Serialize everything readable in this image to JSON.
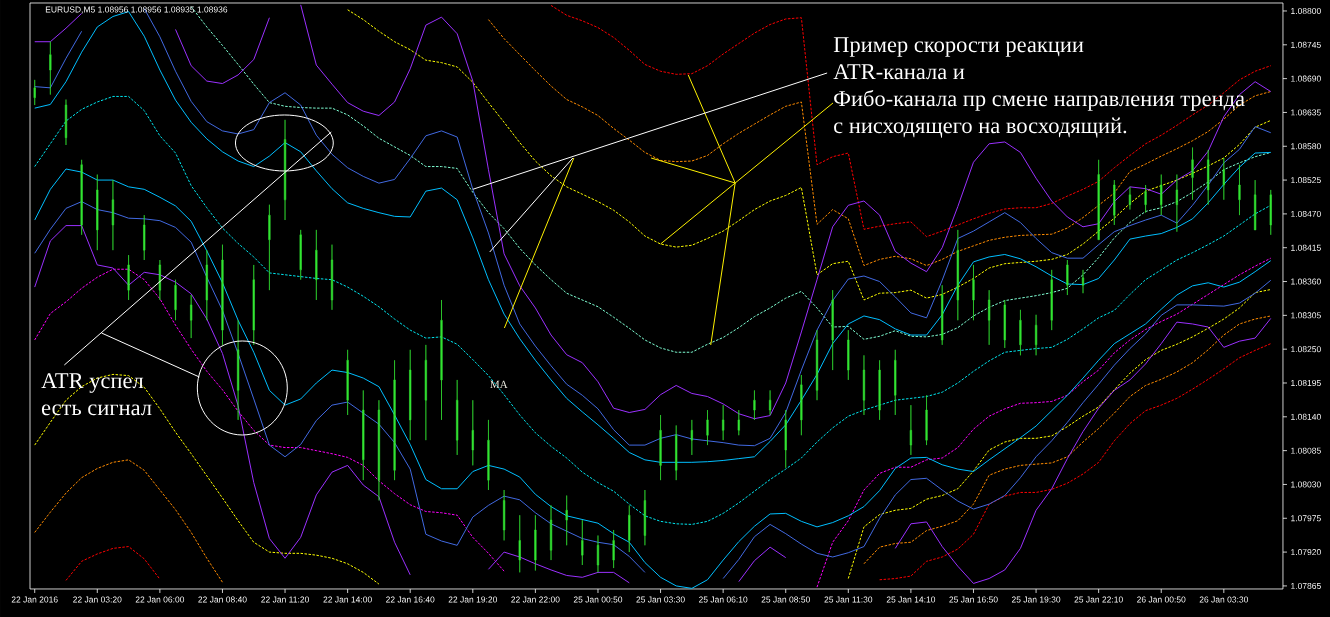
{
  "chart_data": {
    "type": "candlestick",
    "title": "EURUSD,M5 1.08956 1.08956 1.08935 1.08936",
    "annotations": [
      {
        "text": "Пример скорости реакции ATR-канала и",
        "x": "22 Jan 19:20",
        "y": 1.0851
      },
      {
        "text": "Фибо-канала пр смене направления тренда с нисходящего на восходящий.",
        "x": "25 Jan 03:30",
        "y": 1.08421
      },
      "ATR успел",
      "есть сигнал",
      "MA"
    ],
    "ylim": [
      1.0786,
      1.08813
    ],
    "yticks": [
      {
        "value": 1.07865,
        "label": "1.07865"
      },
      {
        "value": 1.0792,
        "label": "1.07920"
      },
      {
        "value": 1.07975,
        "label": "1.07975"
      },
      {
        "value": 1.0803,
        "label": "1.08030"
      },
      {
        "value": 1.08085,
        "label": "1.08085"
      },
      {
        "value": 1.0814,
        "label": "1.08140"
      },
      {
        "value": 1.08195,
        "label": "1.08195"
      },
      {
        "value": 1.0825,
        "label": "1.08250"
      },
      {
        "value": 1.08305,
        "label": "1.08305"
      },
      {
        "value": 1.0836,
        "label": "1.08360"
      },
      {
        "value": 1.08415,
        "label": "1.08415"
      },
      {
        "value": 1.0847,
        "label": "1.08470"
      },
      {
        "value": 1.08525,
        "label": "1.08525"
      },
      {
        "value": 1.0858,
        "label": "1.08580"
      },
      {
        "value": 1.08635,
        "label": "1.08635"
      },
      {
        "value": 1.0869,
        "label": "1.08690"
      },
      {
        "value": 1.08745,
        "label": "1.08745"
      },
      {
        "value": 1.088,
        "label": "1.08800"
      }
    ],
    "categories": [
      "22 Jan 2016",
      null,
      null,
      null,
      "22 Jan 03:20",
      null,
      null,
      null,
      "22 Jan 06:00",
      null,
      null,
      null,
      "22 Jan 08:40",
      null,
      null,
      null,
      "22 Jan 11:20",
      null,
      null,
      null,
      "22 Jan 14:00",
      null,
      null,
      null,
      "22 Jan 16:40",
      null,
      null,
      null,
      "22 Jan 19:20",
      null,
      null,
      null,
      "22 Jan 22:00",
      null,
      null,
      null,
      "25 Jan 00:50",
      null,
      null,
      null,
      "25 Jan 03:30",
      null,
      null,
      null,
      "25 Jan 06:10",
      null,
      null,
      null,
      "25 Jan 08:50",
      null,
      null,
      null,
      "25 Jan 11:30",
      null,
      null,
      null,
      "25 Jan 14:10",
      null,
      null,
      null,
      "25 Jan 16:50",
      null,
      null,
      null,
      "25 Jan 19:30",
      null,
      null,
      null,
      "25 Jan 22:10",
      null,
      null,
      null,
      "26 Jan 00:50",
      null,
      null,
      null,
      "26 Jan 03:30",
      null,
      null,
      null
    ],
    "color": "#33e633",
    "ohlc": [
      [
        1.08675,
        1.08688,
        1.08647,
        1.08659
      ],
      [
        1.08704,
        1.0875,
        1.08664,
        1.08729
      ],
      [
        1.08647,
        1.08656,
        1.08582,
        1.08594
      ],
      [
        1.0855,
        1.08558,
        1.08436,
        1.08452
      ],
      [
        1.08444,
        1.08534,
        1.08411,
        1.08509
      ],
      [
        1.08452,
        1.08525,
        1.08411,
        1.08493
      ],
      [
        1.08346,
        1.08403,
        1.0833,
        1.08387
      ],
      [
        1.08411,
        1.08468,
        1.08395,
        1.08452
      ],
      [
        1.08387,
        1.08395,
        1.0833,
        1.08346
      ],
      [
        1.08354,
        1.08363,
        1.08297,
        1.08314
      ],
      [
        1.08297,
        1.08338,
        1.08268,
        1.08322
      ],
      [
        1.0833,
        1.08411,
        1.08297,
        1.08387
      ],
      [
        1.08395,
        1.0842,
        1.08257,
        1.08281
      ],
      [
        1.08183,
        1.08297,
        1.08135,
        1.08249
      ],
      [
        1.08281,
        1.08387,
        1.08257,
        1.08363
      ],
      [
        1.08428,
        1.08485,
        1.08346,
        1.08468
      ],
      [
        1.08493,
        1.08623,
        1.0846,
        1.08591
      ],
      [
        1.08436,
        1.08444,
        1.08363,
        1.08379
      ],
      [
        1.08411,
        1.08444,
        1.0833,
        1.08363
      ],
      [
        1.08395,
        1.0842,
        1.08314,
        1.0833
      ],
      [
        1.08232,
        1.08249,
        1.08143,
        1.08167
      ],
      [
        1.0807,
        1.08183,
        1.08037,
        1.08151
      ],
      [
        1.08151,
        1.08167,
        1.08004,
        1.08037
      ],
      [
        1.08053,
        1.08232,
        1.08037,
        1.082
      ],
      [
        1.08216,
        1.08249,
        1.08102,
        1.08135
      ],
      [
        1.08167,
        1.08257,
        1.08102,
        1.08232
      ],
      [
        1.082,
        1.0833,
        1.08135,
        1.08297
      ],
      [
        1.08102,
        1.082,
        1.08078,
        1.08167
      ],
      [
        1.08118,
        1.08167,
        1.08061,
        1.08086
      ],
      [
        1.08102,
        1.08135,
        1.08021,
        1.08037
      ],
      [
        1.08004,
        1.08021,
        1.07939,
        1.07956
      ],
      [
        1.07939,
        1.0798,
        1.07887,
        1.07907
      ],
      [
        1.07907,
        1.0798,
        1.0789,
        1.07956
      ],
      [
        1.07923,
        1.07996,
        1.07907,
        1.07972
      ],
      [
        1.07972,
        1.08012,
        1.07931,
        1.07988
      ],
      [
        1.07939,
        1.07972,
        1.07899,
        1.07915
      ],
      [
        1.07931,
        1.07947,
        1.07887,
        1.07899
      ],
      [
        1.07907,
        1.07956,
        1.07894,
        1.07939
      ],
      [
        1.0798,
        1.07996,
        1.0792,
        1.07939
      ],
      [
        1.07947,
        1.08021,
        1.07931,
        1.08004
      ],
      [
        1.08118,
        1.08143,
        1.08037,
        1.08061
      ],
      [
        1.08053,
        1.08126,
        1.08037,
        1.0811
      ],
      [
        1.08102,
        1.08135,
        1.08078,
        1.08118
      ],
      [
        1.0811,
        1.08151,
        1.08094,
        1.08135
      ],
      [
        1.08135,
        1.08159,
        1.08102,
        1.08118
      ],
      [
        1.08135,
        1.08151,
        1.0811,
        1.08118
      ],
      [
        1.08151,
        1.08183,
        1.08135,
        1.08167
      ],
      [
        1.08167,
        1.08183,
        1.08143,
        1.08151
      ],
      [
        1.08086,
        1.08151,
        1.08057,
        1.08135
      ],
      [
        1.08135,
        1.08208,
        1.0811,
        1.08192
      ],
      [
        1.08183,
        1.08281,
        1.08167,
        1.08265
      ],
      [
        1.08265,
        1.08346,
        1.08216,
        1.0833
      ],
      [
        1.08265,
        1.08281,
        1.082,
        1.08216
      ],
      [
        1.08167,
        1.0824,
        1.08143,
        1.08216
      ],
      [
        1.08216,
        1.08232,
        1.08135,
        1.08151
      ],
      [
        1.08175,
        1.08249,
        1.08143,
        1.08232
      ],
      [
        1.08118,
        1.08159,
        1.08078,
        1.08094
      ],
      [
        1.08102,
        1.08175,
        1.08094,
        1.08151
      ],
      [
        1.08265,
        1.08354,
        1.08257,
        1.08338
      ],
      [
        1.0833,
        1.08444,
        1.08297,
        1.08411
      ],
      [
        1.0833,
        1.08387,
        1.08297,
        1.08363
      ],
      [
        1.08297,
        1.08346,
        1.08257,
        1.0833
      ],
      [
        1.08322,
        1.0833,
        1.08252,
        1.08265
      ],
      [
        1.08297,
        1.08314,
        1.0824,
        1.08257
      ],
      [
        1.08257,
        1.08306,
        1.0824,
        1.08289
      ],
      [
        1.08297,
        1.08379,
        1.08281,
        1.08363
      ],
      [
        1.08387,
        1.08395,
        1.08338,
        1.08354
      ],
      [
        1.08354,
        1.08379,
        1.08341,
        1.08366
      ],
      [
        1.08428,
        1.08558,
        1.08428,
        1.08534
      ],
      [
        1.08517,
        1.08525,
        1.08452,
        1.08468
      ],
      [
        1.08501,
        1.08514,
        1.08477,
        1.08485
      ],
      [
        1.08506,
        1.08517,
        1.08472,
        1.08485
      ],
      [
        1.08485,
        1.08534,
        1.08468,
        1.08517
      ],
      [
        1.08485,
        1.08534,
        1.08441,
        1.08509
      ],
      [
        1.08529,
        1.08578,
        1.08493,
        1.08558
      ],
      [
        1.08558,
        1.08574,
        1.08485,
        1.08509
      ],
      [
        1.08542,
        1.08561,
        1.08493,
        1.08517
      ],
      [
        1.08517,
        1.0855,
        1.08468,
        1.08493
      ],
      [
        1.08444,
        1.08525,
        1.08444,
        1.08501
      ],
      [
        1.08501,
        1.08509,
        1.08436,
        1.08452
      ]
    ],
    "series": [
      {
        "type": "line",
        "color": "#00e5ee",
        "line_style": "dashed",
        "values": [
          1.08547,
          1.08584,
          1.08621,
          1.0864,
          1.08652,
          1.08661,
          1.08661,
          1.08638,
          1.08597,
          1.08569,
          1.08516,
          1.0848,
          1.08447,
          1.08422,
          1.084,
          1.08374,
          1.08371,
          1.08368,
          1.08365,
          1.08363,
          1.08351,
          1.08336,
          1.08319,
          1.08299,
          1.08281,
          1.08268,
          1.0827,
          1.08258,
          1.08233,
          1.08207,
          1.08176,
          1.08143,
          1.08114,
          1.08092,
          1.08073,
          1.0805,
          1.08033,
          1.08019,
          1.07998,
          1.07979,
          1.0797,
          1.07966,
          1.07965,
          1.0797,
          1.07983,
          1.08,
          1.08019,
          1.08038,
          1.08055,
          1.08073,
          1.08099,
          1.08122,
          1.08141,
          1.08151,
          1.08159,
          1.08167,
          1.0817,
          1.08173,
          1.0818,
          1.08195,
          1.08214,
          1.08231,
          1.08245,
          1.08248,
          1.08251,
          1.08253,
          1.08266,
          1.08283,
          1.08301,
          1.08313,
          1.08339,
          1.08363,
          1.08379,
          1.08395,
          1.08407,
          1.0842,
          1.08434,
          1.08452,
          1.0847,
          1.08484
        ]
      },
      {
        "type": "line",
        "color": "#7fffd4",
        "line_style": "dashed",
        "values": [
          null,
          null,
          null,
          null,
          null,
          null,
          null,
          null,
          null,
          null,
          1.08807,
          1.08774,
          1.08744,
          1.08713,
          1.08681,
          1.08651,
          1.08645,
          1.08643,
          1.08642,
          1.08642,
          1.08631,
          1.08613,
          1.08593,
          1.08579,
          1.08565,
          1.08547,
          1.08547,
          1.08544,
          1.08505,
          1.08472,
          1.08446,
          1.08414,
          1.08387,
          1.08363,
          1.08341,
          1.0833,
          1.08319,
          1.08302,
          1.08284,
          1.08265,
          1.08252,
          1.08245,
          1.08245,
          1.08258,
          1.08269,
          1.08285,
          1.08303,
          1.08317,
          1.08333,
          1.08344,
          1.08317,
          1.08286,
          1.08287,
          1.08266,
          1.08271,
          1.0828,
          1.08271,
          1.0827,
          1.08274,
          1.08285,
          1.08304,
          1.08318,
          1.08329,
          1.08333,
          1.08337,
          1.08342,
          1.08349,
          1.08371,
          1.08399,
          1.08431,
          1.08456,
          1.08474,
          1.0848,
          1.0849,
          1.08505,
          1.08522,
          1.08542,
          1.08553,
          1.08563,
          1.0857
        ]
      },
      {
        "type": "line",
        "color": "#ffff00",
        "line_style": "dashed",
        "values": [
          null,
          null,
          null,
          null,
          null,
          null,
          null,
          null,
          null,
          null,
          null,
          null,
          null,
          null,
          null,
          null,
          null,
          null,
          null,
          null,
          1.08802,
          1.08786,
          1.08767,
          1.0875,
          1.08737,
          1.0872,
          1.08716,
          1.08709,
          1.08684,
          1.08651,
          1.08619,
          1.08586,
          1.08556,
          1.08532,
          1.08514,
          1.08502,
          1.0849,
          1.08476,
          1.08457,
          1.08434,
          1.08421,
          1.08416,
          1.08419,
          1.0843,
          1.08442,
          1.08459,
          1.08477,
          1.08491,
          1.085,
          1.08513,
          1.08371,
          1.08389,
          1.08393,
          1.0833,
          1.08341,
          1.08342,
          1.08346,
          1.08333,
          1.08339,
          1.08351,
          1.08365,
          1.08382,
          1.08389,
          1.08391,
          1.08393,
          1.08396,
          1.08404,
          1.08421,
          1.08442,
          1.08463,
          1.08487,
          1.08507,
          1.08516,
          1.08525,
          1.08536,
          1.08548,
          1.08561,
          1.08583,
          1.08611,
          1.08622
        ]
      },
      {
        "type": "line",
        "color": "#ff8c00",
        "line_style": "dashed",
        "values": [
          null,
          null,
          null,
          null,
          null,
          null,
          null,
          null,
          null,
          null,
          null,
          null,
          null,
          null,
          null,
          null,
          null,
          null,
          null,
          null,
          null,
          null,
          null,
          null,
          null,
          null,
          null,
          null,
          null,
          1.08786,
          1.08755,
          1.08729,
          1.08703,
          1.08678,
          1.08656,
          1.08644,
          1.0863,
          1.08609,
          1.0859,
          1.0857,
          1.08557,
          1.08555,
          1.08556,
          1.08565,
          1.08584,
          1.08601,
          1.08616,
          1.08631,
          1.08645,
          1.08652,
          1.08453,
          1.08477,
          1.08462,
          1.08386,
          1.08396,
          1.08401,
          1.08397,
          1.08386,
          1.08396,
          1.08409,
          1.08418,
          1.08427,
          1.08432,
          1.08435,
          1.08436,
          1.08437,
          1.08447,
          1.08464,
          1.08484,
          1.08504,
          1.08539,
          1.08551,
          1.08564,
          1.08576,
          1.08589,
          1.08604,
          1.08624,
          1.08647,
          1.08662,
          1.08669
        ]
      },
      {
        "type": "line",
        "color": "#ff0000",
        "line_style": "dashed",
        "values": [
          null,
          null,
          null,
          null,
          null,
          null,
          null,
          null,
          null,
          null,
          null,
          null,
          null,
          null,
          null,
          null,
          null,
          null,
          null,
          null,
          null,
          null,
          null,
          null,
          null,
          null,
          null,
          null,
          null,
          null,
          null,
          null,
          null,
          1.08809,
          1.08793,
          1.08784,
          1.08773,
          1.08757,
          1.08736,
          1.08713,
          1.08702,
          1.08697,
          1.08698,
          1.08711,
          1.0873,
          1.08747,
          1.08764,
          1.08778,
          1.08787,
          1.08789,
          1.0855,
          1.08563,
          1.08569,
          1.08445,
          1.0845,
          1.08454,
          1.08457,
          1.08433,
          1.08442,
          1.08452,
          1.08462,
          1.08471,
          1.08478,
          1.0848,
          1.0848,
          1.08487,
          1.08499,
          1.0851,
          1.08523,
          1.08545,
          1.08565,
          1.08584,
          1.08598,
          1.08614,
          1.08631,
          1.08647,
          1.08667,
          1.08688,
          1.08702,
          1.08711
        ]
      },
      {
        "type": "line",
        "color": "#ff00ff",
        "line_style": "dashed",
        "values": [
          1.08265,
          1.08308,
          1.08327,
          1.08349,
          1.08367,
          1.0838,
          1.0838,
          1.08363,
          1.08332,
          1.08289,
          1.0825,
          1.08214,
          1.08184,
          1.08149,
          1.08118,
          1.08094,
          1.0809,
          1.0809,
          1.08085,
          1.0808,
          1.08074,
          1.08061,
          1.08036,
          1.08015,
          1.07997,
          1.07986,
          1.07984,
          1.0798,
          1.07944,
          1.07918,
          1.07889,
          null,
          null,
          null,
          null,
          null,
          null,
          null,
          null,
          null,
          null,
          null,
          null,
          null,
          null,
          null,
          null,
          null,
          null,
          null,
          1.07863,
          1.07936,
          1.07971,
          1.08021,
          1.08048,
          1.08058,
          1.08058,
          1.0807,
          1.08073,
          1.0809,
          1.0812,
          1.08141,
          1.08153,
          1.08162,
          1.08163,
          1.08165,
          1.08175,
          1.08197,
          1.08216,
          1.08244,
          1.08265,
          1.08282,
          1.08295,
          1.08307,
          1.08323,
          1.08339,
          1.08355,
          1.08371,
          1.08385,
          1.08398
        ]
      },
      {
        "type": "line",
        "color": "#ffff00",
        "line_style": "dashed",
        "values": [
          1.08094,
          1.08131,
          1.08167,
          1.08189,
          1.08203,
          1.08209,
          1.08207,
          1.08188,
          1.08153,
          1.08115,
          1.0808,
          1.08044,
          1.08008,
          1.07971,
          1.07936,
          1.0792,
          1.07918,
          1.07918,
          1.07915,
          1.0791,
          1.07901,
          1.07887,
          1.07868,
          null,
          null,
          null,
          null,
          null,
          null,
          null,
          null,
          null,
          null,
          null,
          null,
          null,
          null,
          null,
          null,
          null,
          null,
          null,
          null,
          null,
          null,
          null,
          null,
          null,
          null,
          null,
          null,
          null,
          1.07877,
          1.07961,
          1.07981,
          1.07988,
          1.07991,
          1.08006,
          1.08012,
          1.08023,
          1.08052,
          1.08086,
          1.08099,
          1.08105,
          1.08105,
          1.08109,
          1.08124,
          1.08141,
          1.08156,
          1.08184,
          1.08211,
          1.08233,
          1.08248,
          1.08258,
          1.0827,
          1.08284,
          1.08299,
          1.08317,
          1.08342,
          1.08347
        ]
      },
      {
        "type": "line",
        "color": "#ff8c00",
        "line_style": "dashed",
        "values": [
          1.07952,
          1.07985,
          1.08016,
          1.08041,
          1.08056,
          1.08066,
          1.0807,
          1.08053,
          1.08021,
          1.07989,
          1.07952,
          1.0791,
          1.07871,
          null,
          null,
          null,
          null,
          null,
          null,
          null,
          null,
          null,
          null,
          null,
          null,
          null,
          null,
          null,
          null,
          null,
          null,
          null,
          null,
          null,
          null,
          null,
          null,
          null,
          null,
          null,
          null,
          null,
          null,
          null,
          null,
          null,
          null,
          null,
          null,
          null,
          null,
          null,
          null,
          1.07901,
          1.07928,
          1.07934,
          1.07936,
          1.07955,
          1.07962,
          1.07971,
          1.07998,
          1.08045,
          1.08055,
          1.08061,
          1.08063,
          1.08065,
          1.08075,
          1.08099,
          1.08121,
          1.08146,
          1.08173,
          1.08191,
          1.08201,
          1.08213,
          1.08228,
          1.08249,
          1.08273,
          1.08291,
          1.08299,
          1.08304
        ]
      },
      {
        "type": "line",
        "color": "#ff0000",
        "line_style": "dashed",
        "values": [
          null,
          null,
          1.07874,
          1.07905,
          1.07917,
          1.07926,
          1.07929,
          1.07909,
          1.07876,
          null,
          null,
          null,
          null,
          null,
          null,
          null,
          null,
          null,
          null,
          null,
          null,
          null,
          null,
          null,
          null,
          null,
          null,
          null,
          null,
          null,
          null,
          null,
          null,
          null,
          null,
          null,
          null,
          null,
          null,
          null,
          null,
          null,
          null,
          null,
          null,
          null,
          null,
          null,
          null,
          null,
          null,
          null,
          null,
          null,
          1.07875,
          1.07877,
          1.07881,
          1.07905,
          1.07912,
          1.07925,
          1.07949,
          1.07998,
          1.08011,
          1.08017,
          1.08017,
          1.08022,
          1.08032,
          1.08047,
          1.08066,
          1.08101,
          1.08129,
          1.0815,
          1.08159,
          1.0817,
          1.08185,
          1.08201,
          1.08218,
          1.08236,
          1.08248,
          1.08259
        ]
      },
      {
        "type": "line",
        "color": "#9b30ff",
        "line_style": "solid",
        "values": [
          1.0875,
          1.0875,
          1.08772,
          1.08796,
          null,
          null,
          null,
          null,
          null,
          1.0877,
          1.08711,
          1.08686,
          1.08682,
          1.08696,
          1.08721,
          1.08789,
          null,
          1.0881,
          1.08712,
          1.08681,
          1.08651,
          1.08637,
          1.0863,
          1.08652,
          1.08706,
          1.08777,
          1.0879,
          1.08763,
          1.08686,
          1.08542,
          1.08405,
          1.08353,
          1.08317,
          1.08273,
          1.08241,
          1.08228,
          1.08197,
          1.08154,
          1.08147,
          1.08152,
          1.08176,
          1.08191,
          1.08178,
          1.08173,
          1.08161,
          1.08145,
          1.08137,
          1.08142,
          1.08195,
          1.08278,
          1.08363,
          1.08449,
          1.08484,
          1.08491,
          1.08468,
          1.08409,
          1.0839,
          1.08376,
          1.08415,
          1.08482,
          1.08554,
          1.08584,
          1.08587,
          1.0857,
          1.08528,
          1.08491,
          1.08465,
          1.08449,
          1.08454,
          1.0849,
          1.08514,
          1.08511,
          1.08502,
          1.08525,
          1.0854,
          1.08572,
          1.08628,
          1.08664,
          1.08685,
          1.08669
        ]
      },
      {
        "type": "line",
        "color": "#4169e1",
        "line_style": "solid",
        "values": [
          1.08677,
          1.08675,
          1.08723,
          1.08767,
          null,
          null,
          null,
          1.08804,
          1.08758,
          1.08702,
          1.08653,
          1.0862,
          1.08605,
          1.086,
          1.08607,
          1.08651,
          1.08667,
          1.08647,
          1.08598,
          1.08567,
          1.08545,
          1.08531,
          1.0852,
          1.08526,
          1.0856,
          1.08597,
          1.08605,
          1.08595,
          1.0851,
          1.08439,
          1.08354,
          1.08291,
          1.08255,
          1.08223,
          1.08193,
          1.08175,
          1.08153,
          1.08119,
          1.08094,
          1.08094,
          1.08105,
          1.08111,
          1.08104,
          1.08101,
          1.08098,
          1.08094,
          1.08093,
          1.08105,
          1.08147,
          1.08216,
          1.08281,
          1.08329,
          1.08364,
          1.08369,
          1.0836,
          1.08335,
          1.08309,
          1.08301,
          1.08362,
          1.0843,
          1.08442,
          1.08457,
          1.08472,
          1.08456,
          1.0843,
          1.08407,
          1.08398,
          1.08398,
          1.0842,
          1.08441,
          1.08451,
          1.0846,
          1.08468,
          1.08455,
          1.08484,
          1.08517,
          1.08553,
          1.08575,
          1.08612,
          1.08602
        ]
      },
      {
        "type": "line",
        "color": "#00bfff",
        "line_style": "solid",
        "values": [
          1.08642,
          1.08648,
          1.08685,
          1.08733,
          1.08774,
          1.08791,
          1.08799,
          1.08759,
          1.08704,
          1.08655,
          1.08619,
          1.08592,
          1.08571,
          1.08556,
          1.08547,
          1.08564,
          1.08586,
          1.08571,
          1.0854,
          1.08511,
          1.08488,
          1.08479,
          1.08472,
          1.08466,
          1.08465,
          1.08507,
          1.08512,
          1.08493,
          1.08431,
          1.08363,
          1.08307,
          1.08267,
          1.08232,
          1.082,
          1.0817,
          1.08148,
          1.08127,
          1.08105,
          1.08082,
          1.0807,
          1.08066,
          1.08066,
          1.08066,
          1.08067,
          1.08069,
          1.08072,
          1.08075,
          1.081,
          1.08127,
          1.08167,
          1.08209,
          1.08259,
          1.08291,
          1.08304,
          1.08298,
          1.08283,
          1.08273,
          1.08273,
          1.08306,
          1.08354,
          1.08392,
          1.084,
          1.08404,
          1.08397,
          1.08384,
          1.08369,
          1.08356,
          1.08355,
          1.08365,
          1.08395,
          1.08429,
          1.08434,
          1.08438,
          1.08448,
          1.08462,
          1.08488,
          1.08518,
          1.08546,
          1.08569,
          1.0857
        ]
      },
      {
        "type": "line",
        "color": "#00bfff",
        "line_style": "solid",
        "values": [
          1.0846,
          1.0851,
          1.08543,
          1.08538,
          1.08525,
          1.08525,
          1.08514,
          1.0851,
          1.08497,
          1.08483,
          1.08458,
          1.0841,
          1.08358,
          1.08297,
          1.08245,
          1.08183,
          1.08159,
          1.08169,
          1.08195,
          1.08216,
          1.08212,
          1.08203,
          1.08189,
          1.08143,
          1.08095,
          1.08038,
          1.08023,
          1.08023,
          1.08051,
          1.08061,
          1.08055,
          1.08042,
          1.08014,
          1.07994,
          1.07979,
          1.07973,
          1.07967,
          1.0795,
          1.07936,
          1.07903,
          1.07879,
          1.07865,
          1.07861,
          1.07875,
          1.07907,
          1.07937,
          1.07962,
          1.07982,
          1.07983,
          1.0797,
          1.07961,
          1.07968,
          1.07979,
          1.07994,
          1.0802,
          1.08056,
          1.08073,
          1.08074,
          1.08062,
          1.08055,
          1.08051,
          1.0807,
          1.08088,
          1.08106,
          1.08125,
          1.0815,
          1.08175,
          1.08203,
          1.08232,
          1.08259,
          1.08275,
          1.08291,
          1.08315,
          1.08338,
          1.08353,
          1.08358,
          1.08351,
          1.08359,
          1.08376,
          1.08394
        ]
      },
      {
        "type": "line",
        "color": "#4169e1",
        "line_style": "solid",
        "values": [
          1.08406,
          1.08445,
          1.08479,
          1.0849,
          1.08477,
          1.08472,
          1.08463,
          1.08462,
          1.08459,
          1.08448,
          1.08424,
          1.08367,
          1.08313,
          1.08243,
          1.08169,
          1.08094,
          1.08075,
          1.08095,
          1.08134,
          1.08159,
          1.08164,
          1.08146,
          1.08128,
          1.08098,
          1.08055,
          1.07949,
          1.07938,
          1.07931,
          1.07977,
          1.07996,
          1.08011,
          1.08005,
          1.07984,
          1.07966,
          1.07954,
          1.07942,
          1.07936,
          1.07932,
          1.07913,
          1.07887,
          null,
          null,
          null,
          null,
          1.07877,
          1.07908,
          1.07945,
          1.07965,
          1.0795,
          1.07933,
          1.07918,
          1.07912,
          1.07919,
          1.07929,
          1.07975,
          1.08013,
          1.08038,
          1.0804,
          1.08021,
          1.08003,
          1.0799,
          1.07998,
          1.08012,
          1.08041,
          1.08075,
          1.08101,
          1.08131,
          1.08163,
          1.08193,
          1.08224,
          1.08251,
          1.08275,
          1.08305,
          1.08322,
          1.08322,
          1.08321,
          1.0832,
          1.08325,
          1.08341,
          1.08362
        ]
      },
      {
        "type": "line",
        "color": "#9b30ff",
        "line_style": "solid",
        "values": [
          1.08351,
          1.08426,
          1.08451,
          1.08451,
          1.08387,
          1.08382,
          1.08354,
          1.08375,
          1.08371,
          1.08359,
          1.0834,
          1.08299,
          1.08243,
          1.08158,
          1.08033,
          1.07942,
          1.0791,
          1.07944,
          1.08013,
          1.0805,
          1.08061,
          1.08029,
          1.0801,
          1.07936,
          1.07883,
          null,
          null,
          null,
          null,
          1.07892,
          1.0792,
          1.07912,
          1.07901,
          1.07891,
          1.07882,
          1.07879,
          1.07887,
          1.07887,
          1.0787,
          null,
          null,
          null,
          null,
          null,
          null,
          1.07872,
          1.07906,
          1.07928,
          1.07911,
          null,
          null,
          null,
          null,
          null,
          null,
          1.07926,
          1.07966,
          1.07969,
          1.07929,
          1.07897,
          1.07869,
          1.07877,
          1.07891,
          1.07926,
          1.07988,
          1.08023,
          1.08072,
          1.08116,
          1.08154,
          1.08183,
          1.082,
          1.08226,
          1.08259,
          1.08294,
          1.08291,
          1.08286,
          1.08253,
          1.08263,
          1.08268,
          1.083
        ]
      }
    ]
  }
}
